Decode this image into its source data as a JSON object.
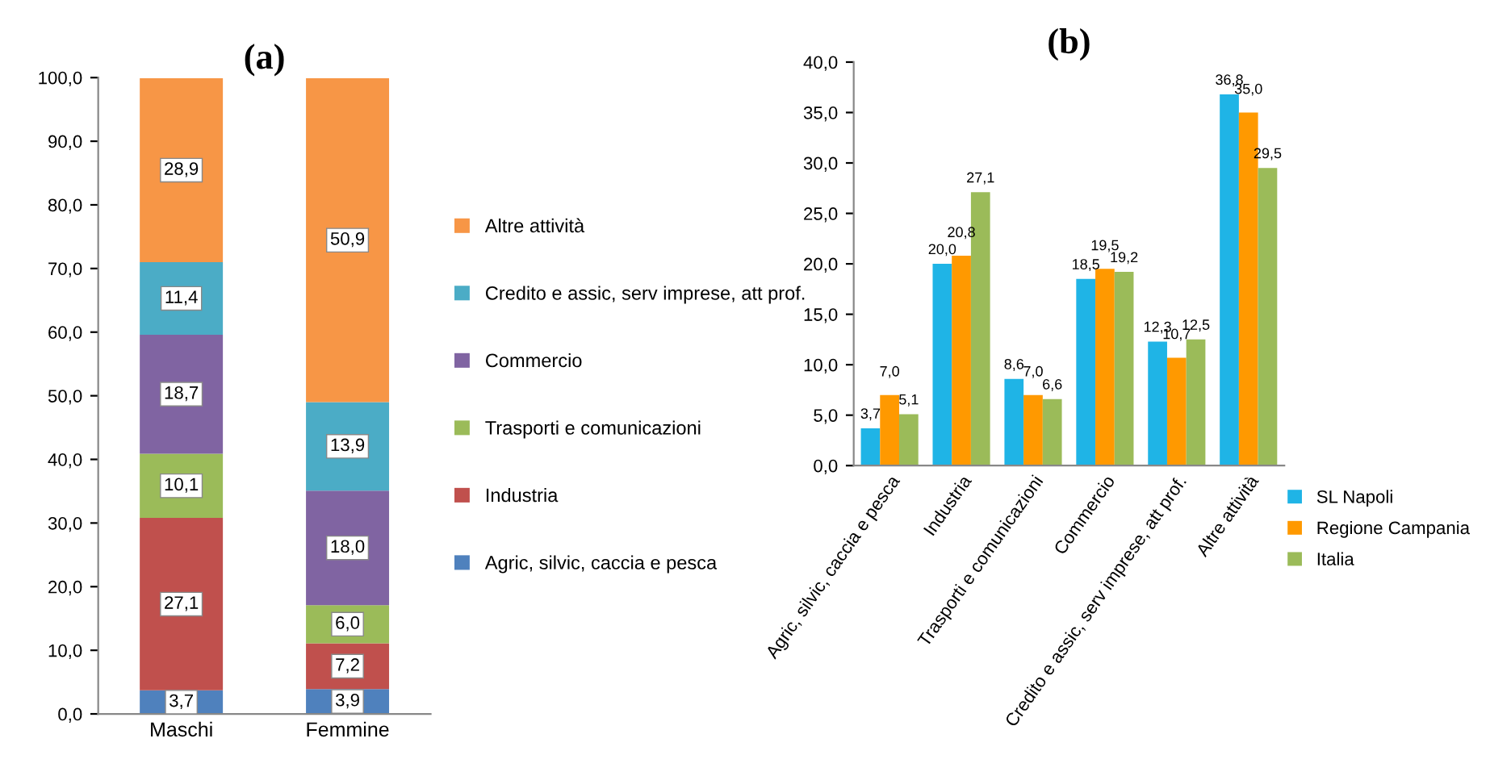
{
  "chart_data": [
    {
      "type": "bar",
      "title": "(a)",
      "stacked": true,
      "categories": [
        "Maschi",
        "Femmine"
      ],
      "ylim": [
        0,
        100
      ],
      "yticks": [
        {
          "value": 0,
          "label": "0,0"
        },
        {
          "value": 10,
          "label": "10,0"
        },
        {
          "value": 20,
          "label": "20,0"
        },
        {
          "value": 30,
          "label": "30,0"
        },
        {
          "value": 40,
          "label": "40,0"
        },
        {
          "value": 50,
          "label": "50,0"
        },
        {
          "value": 60,
          "label": "60,0"
        },
        {
          "value": 70,
          "label": "70,0"
        },
        {
          "value": 80,
          "label": "80,0"
        },
        {
          "value": 90,
          "label": "90,0"
        },
        {
          "value": 100,
          "label": "100,0"
        }
      ],
      "legend": "right",
      "grid": false,
      "series": [
        {
          "name": "Agric, silvic, caccia e pesca",
          "color": "#4f81bd",
          "values": [
            3.7,
            3.9
          ],
          "value_labels": [
            "3,7",
            "3,9"
          ]
        },
        {
          "name": "Industria",
          "color": "#c0504d",
          "values": [
            27.1,
            7.2
          ],
          "value_labels": [
            "27,1",
            "7,2"
          ]
        },
        {
          "name": "Trasporti e comunicazioni",
          "color": "#9bbb59",
          "values": [
            10.1,
            6.0
          ],
          "value_labels": [
            "10,1",
            "6,0"
          ]
        },
        {
          "name": "Commercio",
          "color": "#8064a2",
          "values": [
            18.7,
            18.0
          ],
          "value_labels": [
            "18,7",
            "18,0"
          ]
        },
        {
          "name": "Credito e assic, serv imprese, att prof.",
          "color": "#4bacc6",
          "values": [
            11.4,
            13.9
          ],
          "value_labels": [
            "11,4",
            "13,9"
          ]
        },
        {
          "name": "Altre attività",
          "color": "#f79646",
          "values": [
            28.9,
            50.9
          ],
          "value_labels": [
            "28,9",
            "50,9"
          ]
        }
      ]
    },
    {
      "type": "bar",
      "title": "(b)",
      "categories": [
        "Agric, silvic, caccia e pesca",
        "Industria",
        "Trasporti e comunicazioni",
        "Commercio",
        "Credito e assic, serv imprese, att prof.",
        "Altre attività"
      ],
      "ylim": [
        0,
        40
      ],
      "yticks": [
        {
          "value": 0,
          "label": "0,0"
        },
        {
          "value": 5,
          "label": "5,0"
        },
        {
          "value": 10,
          "label": "10,0"
        },
        {
          "value": 15,
          "label": "15,0"
        },
        {
          "value": 20,
          "label": "20,0"
        },
        {
          "value": 25,
          "label": "25,0"
        },
        {
          "value": 30,
          "label": "30,0"
        },
        {
          "value": 35,
          "label": "35,0"
        },
        {
          "value": 40,
          "label": "40,0"
        }
      ],
      "legend": "bottom right",
      "grid": false,
      "series": [
        {
          "name": "SL Napoli",
          "color": "#1fb4e6",
          "values": [
            3.7,
            20.0,
            8.6,
            18.5,
            12.3,
            36.8
          ],
          "value_labels": [
            "3,7",
            "20,0",
            "8,6",
            "18,5",
            "12,3",
            "36,8"
          ]
        },
        {
          "name": "Regione Campania",
          "color": "#ff9900",
          "values": [
            7.0,
            20.8,
            7.0,
            19.5,
            10.7,
            35.0
          ],
          "value_labels": [
            "7,0",
            "20,8",
            "7,0",
            "19,5",
            "10,7",
            "35,0"
          ]
        },
        {
          "name": "Italia",
          "color": "#9bbb59",
          "values": [
            5.1,
            27.1,
            6.6,
            19.2,
            12.5,
            29.5
          ],
          "value_labels": [
            "5,1",
            "27,1",
            "6,6",
            "19,2",
            "12,5",
            "29,5"
          ]
        }
      ]
    }
  ]
}
